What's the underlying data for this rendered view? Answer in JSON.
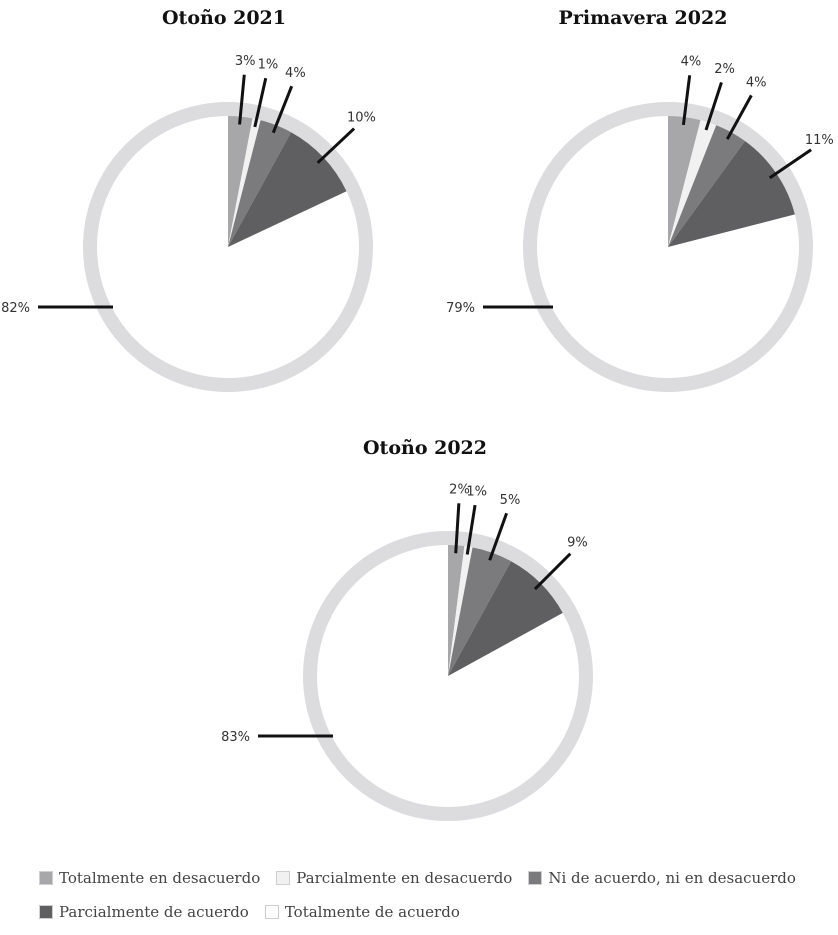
{
  "chart_data": [
    {
      "type": "pie",
      "title": "Otoño 2021",
      "slices": [
        {
          "category": "Totalmente en desacuerdo",
          "value": 3,
          "label": "3%"
        },
        {
          "category": "Parcialmente en desacuerdo",
          "value": 1,
          "label": "1%"
        },
        {
          "category": "Ni de acuerdo, ni en desacuerdo",
          "value": 4,
          "label": "4%"
        },
        {
          "category": "Parcialmente de acuerdo",
          "value": 10,
          "label": "10%"
        },
        {
          "category": "Totalmente de acuerdo",
          "value": 82,
          "label": "82%"
        }
      ]
    },
    {
      "type": "pie",
      "title": "Primavera 2022",
      "slices": [
        {
          "category": "Totalmente en desacuerdo",
          "value": 4,
          "label": "4%"
        },
        {
          "category": "Parcialmente en desacuerdo",
          "value": 2,
          "label": "2%"
        },
        {
          "category": "Ni de acuerdo, ni en desacuerdo",
          "value": 4,
          "label": "4%"
        },
        {
          "category": "Parcialmente de acuerdo",
          "value": 11,
          "label": "11%"
        },
        {
          "category": "Totalmente de acuerdo",
          "value": 79,
          "label": "79%"
        }
      ]
    },
    {
      "type": "pie",
      "title": "Otoño 2022",
      "slices": [
        {
          "category": "Totalmente en desacuerdo",
          "value": 2,
          "label": "2%"
        },
        {
          "category": "Parcialmente en desacuerdo",
          "value": 1,
          "label": "1%"
        },
        {
          "category": "Ni de acuerdo, ni en desacuerdo",
          "value": 5,
          "label": "5%"
        },
        {
          "category": "Parcialmente de acuerdo",
          "value": 9,
          "label": "9%"
        },
        {
          "category": "Totalmente de acuerdo",
          "value": 83,
          "label": "83%"
        }
      ]
    }
  ],
  "legend": {
    "placement": "bottom",
    "items": [
      {
        "label": "Totalmente en desacuerdo",
        "color": "#a7a7a9"
      },
      {
        "label": "Parcialmente en desacuerdo",
        "color": "#f1f1f1"
      },
      {
        "label": "Ni de acuerdo, ni en desacuerdo",
        "color": "#7b7b7d"
      },
      {
        "label": "Parcialmente de acuerdo",
        "color": "#5f5f61"
      },
      {
        "label": "Totalmente de acuerdo",
        "color": "#ffffff"
      }
    ]
  },
  "colors": {
    "ring": "#dcdcde",
    "leader": "#111111",
    "swatch_border": "#cfcfcf"
  }
}
